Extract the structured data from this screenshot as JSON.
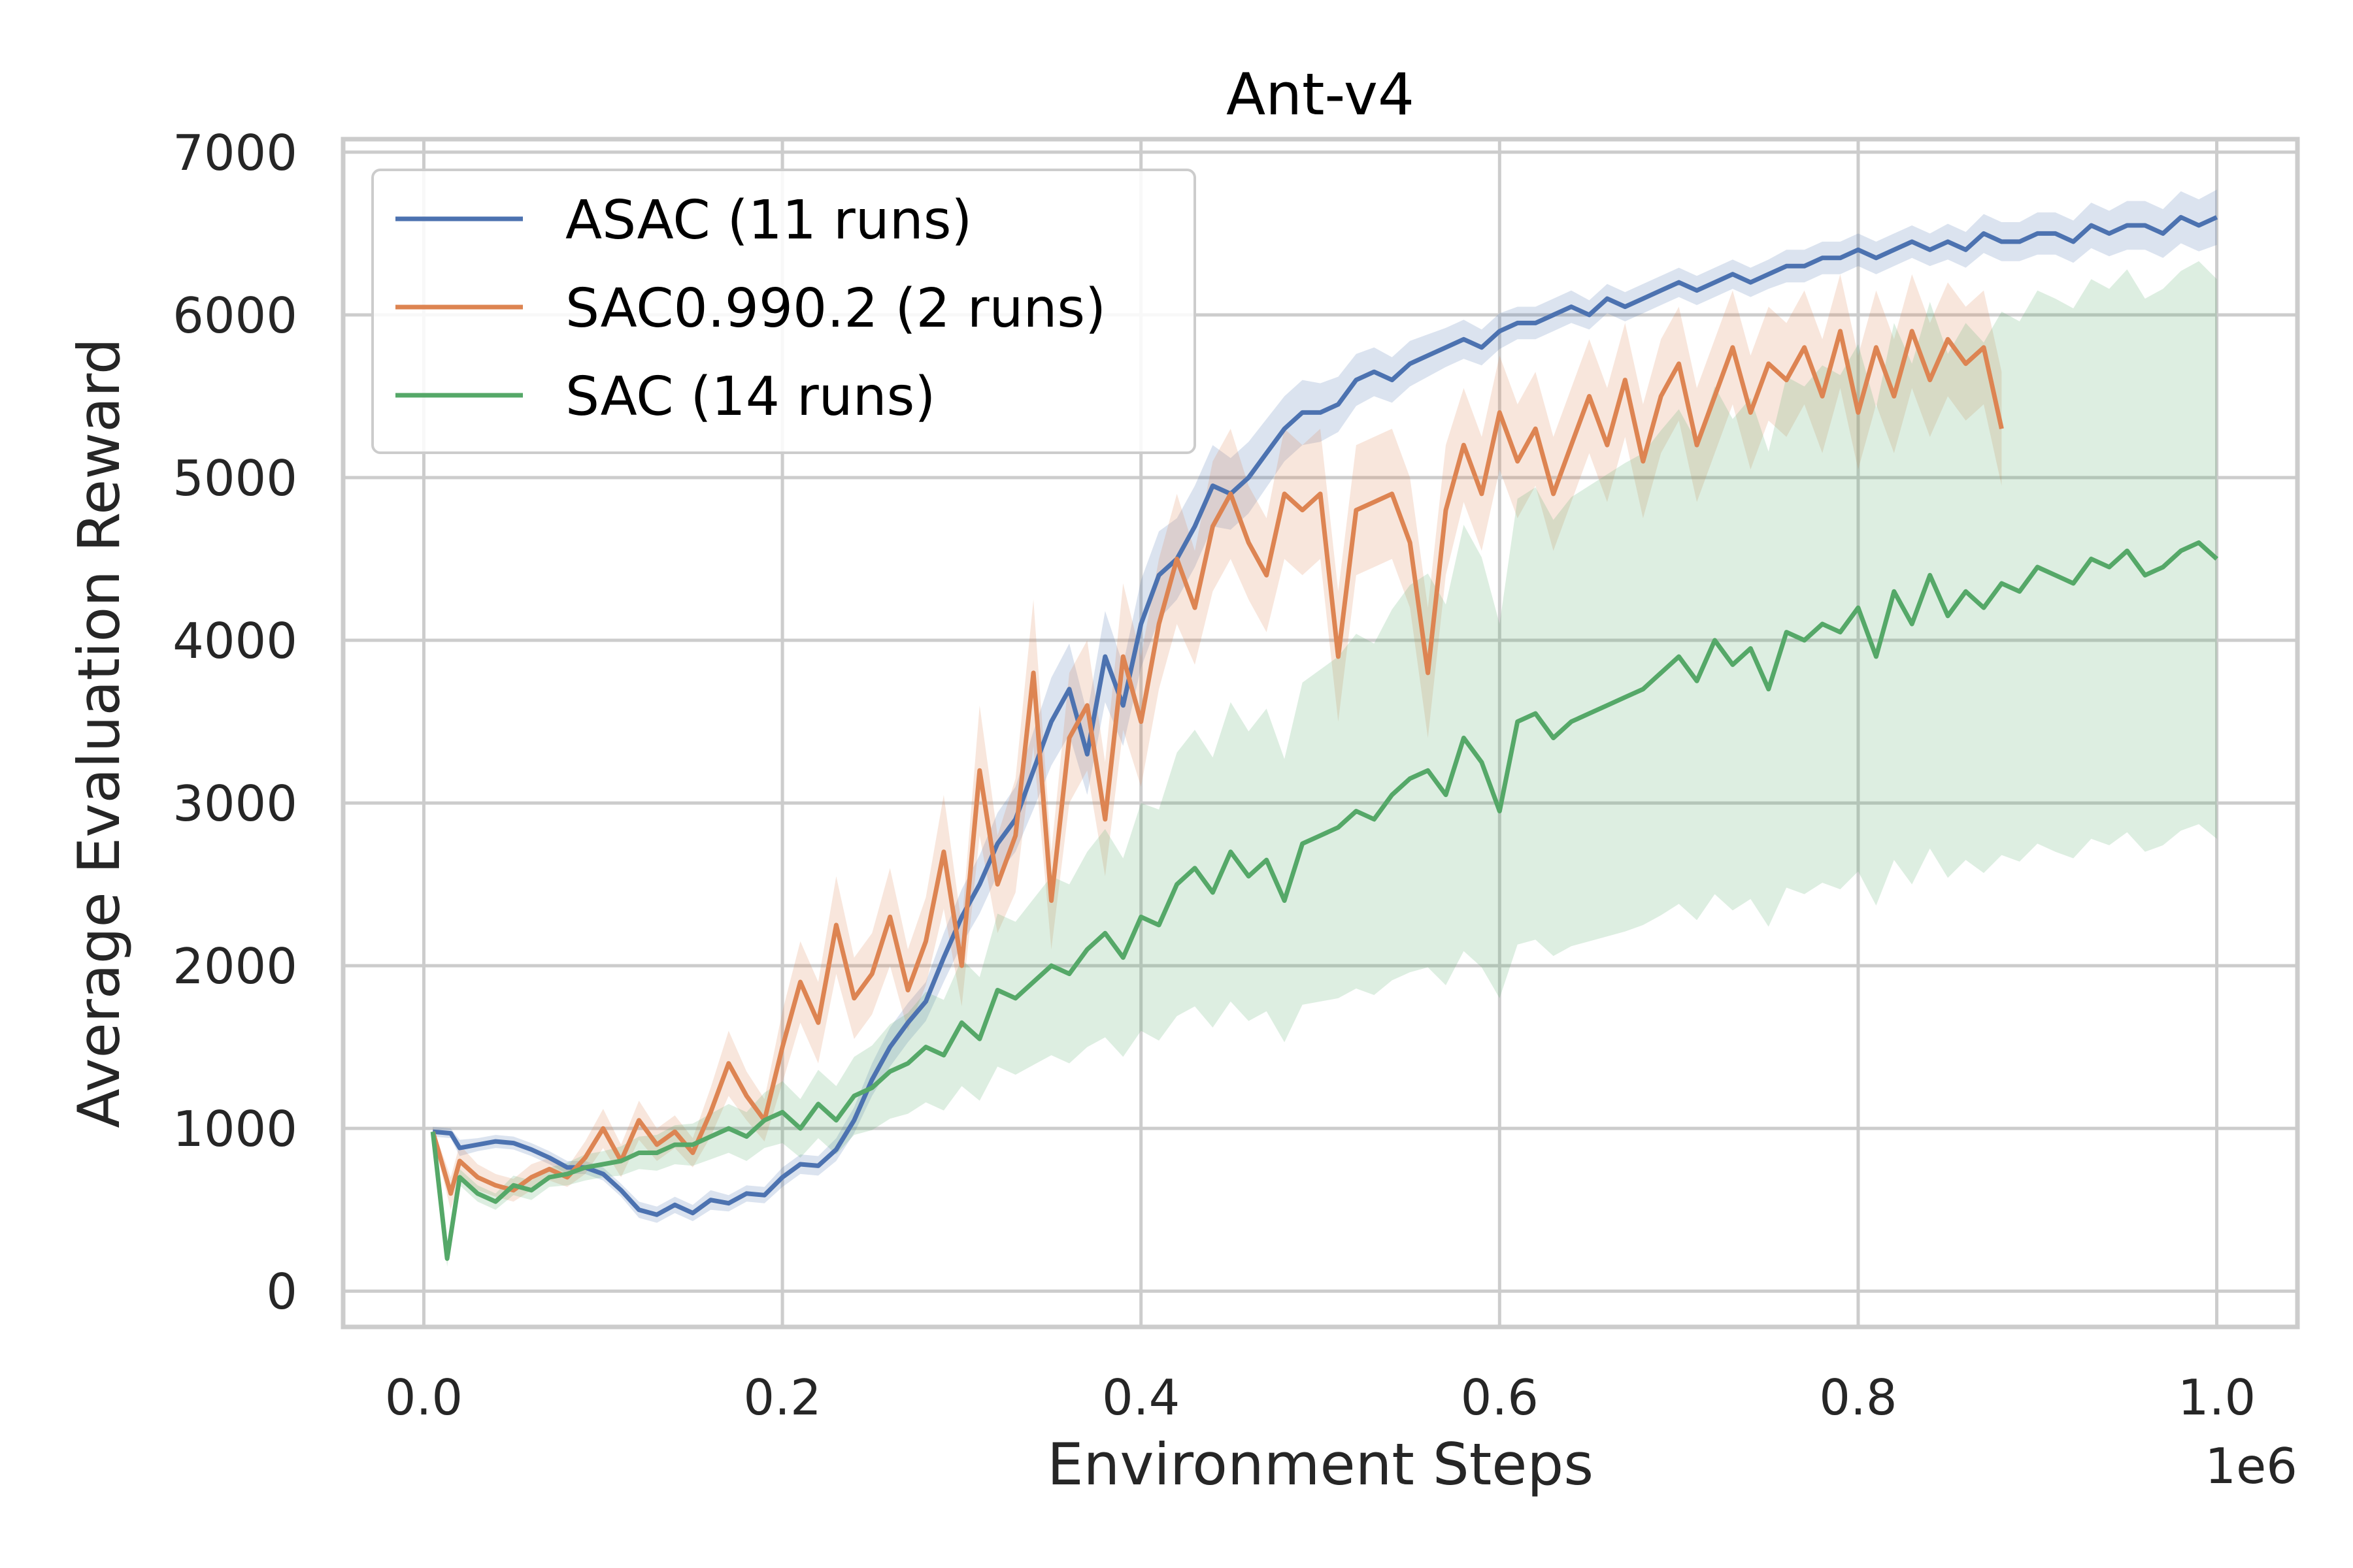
{
  "chart_data": {
    "type": "line",
    "title": "Ant-v4",
    "xlabel": "Environment Steps",
    "ylabel": "Average Evaluation Reward",
    "x_offset_label": "1e6",
    "xlim": [
      -0.045,
      1.045
    ],
    "ylim": [
      -220,
      7080
    ],
    "xticks": [
      0.0,
      0.2,
      0.4,
      0.6,
      0.8,
      1.0
    ],
    "xtick_labels": [
      "0.0",
      "0.2",
      "0.4",
      "0.6",
      "0.8",
      "1.0"
    ],
    "yticks": [
      0,
      1000,
      2000,
      3000,
      4000,
      5000,
      6000,
      7000
    ],
    "ytick_labels": [
      "0",
      "1000",
      "2000",
      "3000",
      "4000",
      "5000",
      "6000",
      "7000"
    ],
    "grid": true,
    "legend_position": "upper-left",
    "series": [
      {
        "name": "ASAC (11 runs)",
        "color": "#4c72b0",
        "x": [
          0.005,
          0.015,
          0.02,
          0.03,
          0.04,
          0.05,
          0.06,
          0.07,
          0.08,
          0.09,
          0.1,
          0.11,
          0.12,
          0.13,
          0.14,
          0.15,
          0.16,
          0.17,
          0.18,
          0.19,
          0.2,
          0.21,
          0.22,
          0.23,
          0.24,
          0.25,
          0.26,
          0.27,
          0.28,
          0.29,
          0.3,
          0.31,
          0.32,
          0.33,
          0.34,
          0.35,
          0.36,
          0.37,
          0.38,
          0.39,
          0.4,
          0.41,
          0.42,
          0.43,
          0.44,
          0.45,
          0.46,
          0.47,
          0.48,
          0.49,
          0.5,
          0.51,
          0.52,
          0.53,
          0.54,
          0.55,
          0.56,
          0.57,
          0.58,
          0.59,
          0.6,
          0.61,
          0.62,
          0.63,
          0.64,
          0.65,
          0.66,
          0.67,
          0.68,
          0.69,
          0.7,
          0.71,
          0.72,
          0.73,
          0.74,
          0.75,
          0.76,
          0.77,
          0.78,
          0.79,
          0.8,
          0.81,
          0.82,
          0.83,
          0.84,
          0.85,
          0.86,
          0.87,
          0.88,
          0.89,
          0.9,
          0.91,
          0.92,
          0.93,
          0.94,
          0.95,
          0.96,
          0.97,
          0.98,
          0.99,
          1.0
        ],
        "y": [
          980,
          970,
          880,
          900,
          920,
          910,
          870,
          820,
          760,
          760,
          720,
          620,
          500,
          470,
          530,
          480,
          560,
          540,
          600,
          590,
          700,
          780,
          770,
          870,
          1050,
          1300,
          1500,
          1650,
          1780,
          2050,
          2300,
          2500,
          2750,
          2900,
          3200,
          3500,
          3700,
          3300,
          3900,
          3600,
          4100,
          4400,
          4500,
          4700,
          4950,
          4900,
          5000,
          5150,
          5300,
          5400,
          5400,
          5450,
          5600,
          5650,
          5600,
          5700,
          5750,
          5800,
          5850,
          5800,
          5900,
          5950,
          5950,
          6000,
          6050,
          6000,
          6100,
          6050,
          6100,
          6150,
          6200,
          6150,
          6200,
          6250,
          6200,
          6250,
          6300,
          6300,
          6350,
          6350,
          6400,
          6350,
          6400,
          6450,
          6400,
          6450,
          6400,
          6500,
          6450,
          6450,
          6500,
          6500,
          6450,
          6550,
          6500,
          6550,
          6550,
          6500,
          6600,
          6550,
          6600
        ],
        "y_low": [
          950,
          940,
          830,
          860,
          880,
          870,
          830,
          780,
          720,
          720,
          680,
          580,
          450,
          420,
          480,
          430,
          500,
          490,
          550,
          540,
          640,
          720,
          710,
          800,
          970,
          1200,
          1380,
          1530,
          1660,
          1900,
          2130,
          2320,
          2560,
          2700,
          2960,
          3230,
          3420,
          3050,
          3620,
          3350,
          3830,
          4130,
          4250,
          4450,
          4700,
          4680,
          4780,
          4940,
          5100,
          5200,
          5220,
          5280,
          5440,
          5500,
          5460,
          5560,
          5620,
          5680,
          5730,
          5690,
          5790,
          5850,
          5850,
          5900,
          5950,
          5910,
          6010,
          5960,
          6010,
          6060,
          6110,
          6060,
          6110,
          6160,
          6110,
          6160,
          6200,
          6200,
          6250,
          6250,
          6300,
          6250,
          6300,
          6350,
          6300,
          6340,
          6290,
          6380,
          6330,
          6330,
          6370,
          6370,
          6320,
          6410,
          6360,
          6400,
          6400,
          6350,
          6440,
          6390,
          6430
        ],
        "y_high": [
          1010,
          1000,
          930,
          940,
          960,
          950,
          910,
          860,
          800,
          800,
          760,
          660,
          550,
          520,
          580,
          530,
          620,
          590,
          650,
          640,
          760,
          840,
          830,
          940,
          1130,
          1400,
          1620,
          1770,
          1900,
          2200,
          2470,
          2680,
          2940,
          3100,
          3440,
          3770,
          3980,
          3550,
          4180,
          3850,
          4370,
          4670,
          4750,
          4950,
          5200,
          5120,
          5220,
          5360,
          5500,
          5600,
          5580,
          5620,
          5760,
          5800,
          5740,
          5840,
          5880,
          5920,
          5970,
          5910,
          6010,
          6050,
          6050,
          6100,
          6150,
          6090,
          6190,
          6140,
          6190,
          6240,
          6290,
          6240,
          6290,
          6340,
          6290,
          6340,
          6400,
          6400,
          6450,
          6450,
          6500,
          6450,
          6500,
          6550,
          6500,
          6560,
          6510,
          6620,
          6570,
          6570,
          6630,
          6630,
          6580,
          6690,
          6640,
          6700,
          6700,
          6650,
          6760,
          6710,
          6770
        ]
      },
      {
        "name": "SAC0.990.2 (2 runs)",
        "color": "#dd8452",
        "x": [
          0.005,
          0.015,
          0.02,
          0.03,
          0.04,
          0.05,
          0.06,
          0.07,
          0.08,
          0.09,
          0.1,
          0.11,
          0.12,
          0.13,
          0.14,
          0.15,
          0.16,
          0.17,
          0.18,
          0.19,
          0.2,
          0.21,
          0.22,
          0.23,
          0.24,
          0.25,
          0.26,
          0.27,
          0.28,
          0.29,
          0.3,
          0.31,
          0.32,
          0.33,
          0.34,
          0.35,
          0.36,
          0.37,
          0.38,
          0.39,
          0.4,
          0.41,
          0.42,
          0.43,
          0.44,
          0.45,
          0.46,
          0.47,
          0.48,
          0.49,
          0.5,
          0.51,
          0.52,
          0.53,
          0.54,
          0.55,
          0.56,
          0.57,
          0.58,
          0.59,
          0.6,
          0.61,
          0.62,
          0.63,
          0.64,
          0.65,
          0.66,
          0.67,
          0.68,
          0.69,
          0.7,
          0.71,
          0.72,
          0.73,
          0.74,
          0.75,
          0.76,
          0.77,
          0.78,
          0.79,
          0.8,
          0.81,
          0.82,
          0.83,
          0.84,
          0.85,
          0.86,
          0.87,
          0.88
        ],
        "y": [
          980,
          600,
          800,
          700,
          650,
          620,
          700,
          750,
          700,
          820,
          1000,
          800,
          1050,
          900,
          980,
          850,
          1100,
          1400,
          1200,
          1050,
          1500,
          1900,
          1650,
          2250,
          1800,
          1950,
          2300,
          1850,
          2150,
          2700,
          2000,
          3200,
          2500,
          2800,
          3800,
          2400,
          3400,
          3600,
          2900,
          3900,
          3500,
          4100,
          4500,
          4200,
          4700,
          4900,
          4600,
          4400,
          4900,
          4800,
          4900,
          3900,
          4800,
          4850,
          4900,
          4600,
          3800,
          4800,
          5200,
          4900,
          5400,
          5100,
          5300,
          4900,
          5200,
          5500,
          5200,
          5600,
          5100,
          5500,
          5700,
          5200,
          5500,
          5800,
          5400,
          5700,
          5600,
          5800,
          5500,
          5900,
          5400,
          5800,
          5500,
          5900,
          5600,
          5850,
          5700,
          5800,
          5300
        ],
        "y_low": [
          950,
          500,
          700,
          620,
          580,
          550,
          620,
          680,
          640,
          720,
          880,
          700,
          930,
          800,
          880,
          760,
          950,
          1200,
          1050,
          920,
          1280,
          1650,
          1400,
          1950,
          1550,
          1700,
          2000,
          1600,
          1880,
          2350,
          1750,
          2800,
          2200,
          2450,
          3350,
          2100,
          3000,
          3200,
          2550,
          3450,
          3100,
          3700,
          4100,
          3850,
          4300,
          4500,
          4250,
          4050,
          4500,
          4400,
          4500,
          3500,
          4400,
          4450,
          4500,
          4200,
          3400,
          4400,
          4850,
          4550,
          5050,
          4750,
          4950,
          4550,
          4850,
          5150,
          4850,
          5250,
          4750,
          5150,
          5350,
          4850,
          5150,
          5450,
          5050,
          5350,
          5250,
          5450,
          5150,
          5550,
          5050,
          5450,
          5150,
          5550,
          5250,
          5500,
          5350,
          5450,
          4950
        ],
        "y_high": [
          1010,
          700,
          900,
          780,
          720,
          690,
          780,
          820,
          760,
          920,
          1120,
          900,
          1170,
          1000,
          1080,
          940,
          1250,
          1600,
          1350,
          1180,
          1720,
          2150,
          1900,
          2550,
          2050,
          2200,
          2600,
          2100,
          2420,
          3050,
          2250,
          3600,
          2800,
          3150,
          4250,
          2700,
          3800,
          4000,
          3250,
          4350,
          3900,
          4500,
          4900,
          4550,
          5100,
          5300,
          4950,
          4750,
          5300,
          5200,
          5300,
          4300,
          5200,
          5250,
          5300,
          5000,
          4200,
          5200,
          5550,
          5250,
          5750,
          5450,
          5650,
          5250,
          5550,
          5850,
          5550,
          5950,
          5450,
          5850,
          6050,
          5550,
          5850,
          6150,
          5750,
          6050,
          5950,
          6150,
          5850,
          6250,
          5750,
          6150,
          5850,
          6250,
          5950,
          6200,
          6050,
          6150,
          5650
        ]
      },
      {
        "name": "SAC (14 runs)",
        "color": "#55a868",
        "x": [
          0.005,
          0.013,
          0.02,
          0.03,
          0.04,
          0.05,
          0.06,
          0.07,
          0.08,
          0.09,
          0.1,
          0.11,
          0.12,
          0.13,
          0.14,
          0.15,
          0.16,
          0.17,
          0.18,
          0.19,
          0.2,
          0.21,
          0.22,
          0.23,
          0.24,
          0.25,
          0.26,
          0.27,
          0.28,
          0.29,
          0.3,
          0.31,
          0.32,
          0.33,
          0.34,
          0.35,
          0.36,
          0.37,
          0.38,
          0.39,
          0.4,
          0.41,
          0.42,
          0.43,
          0.44,
          0.45,
          0.46,
          0.47,
          0.48,
          0.49,
          0.5,
          0.51,
          0.52,
          0.53,
          0.54,
          0.55,
          0.56,
          0.57,
          0.58,
          0.59,
          0.6,
          0.61,
          0.62,
          0.63,
          0.64,
          0.65,
          0.66,
          0.67,
          0.68,
          0.69,
          0.7,
          0.71,
          0.72,
          0.73,
          0.74,
          0.75,
          0.76,
          0.77,
          0.78,
          0.79,
          0.8,
          0.81,
          0.82,
          0.83,
          0.84,
          0.85,
          0.86,
          0.87,
          0.88,
          0.89,
          0.9,
          0.91,
          0.92,
          0.93,
          0.94,
          0.95,
          0.96,
          0.97,
          0.98,
          0.99,
          1.0
        ],
        "y": [
          980,
          200,
          700,
          600,
          550,
          650,
          620,
          700,
          720,
          760,
          780,
          800,
          850,
          850,
          900,
          900,
          950,
          1000,
          950,
          1050,
          1100,
          1000,
          1150,
          1050,
          1200,
          1250,
          1350,
          1400,
          1500,
          1450,
          1650,
          1550,
          1850,
          1800,
          1900,
          2000,
          1950,
          2100,
          2200,
          2050,
          2300,
          2250,
          2500,
          2600,
          2450,
          2700,
          2550,
          2650,
          2400,
          2750,
          2800,
          2850,
          2950,
          2900,
          3050,
          3150,
          3200,
          3050,
          3400,
          3250,
          2950,
          3500,
          3550,
          3400,
          3500,
          3550,
          3600,
          3650,
          3700,
          3800,
          3900,
          3750,
          4000,
          3850,
          3950,
          3700,
          4050,
          4000,
          4100,
          4050,
          4200,
          3900,
          4300,
          4100,
          4400,
          4150,
          4300,
          4200,
          4350,
          4300,
          4450,
          4400,
          4350,
          4500,
          4450,
          4550,
          4400,
          4450,
          4550,
          4600,
          4500
        ],
        "y_low": [
          950,
          150,
          650,
          550,
          500,
          590,
          560,
          640,
          650,
          680,
          700,
          710,
          750,
          740,
          780,
          770,
          810,
          850,
          800,
          880,
          910,
          820,
          940,
          840,
          960,
          990,
          1060,
          1090,
          1160,
          1110,
          1260,
          1170,
          1380,
          1330,
          1390,
          1450,
          1400,
          1500,
          1560,
          1440,
          1600,
          1540,
          1690,
          1750,
          1620,
          1780,
          1660,
          1720,
          1530,
          1760,
          1780,
          1800,
          1860,
          1820,
          1910,
          1960,
          1990,
          1880,
          2090,
          1990,
          1800,
          2130,
          2160,
          2060,
          2120,
          2150,
          2180,
          2210,
          2250,
          2310,
          2380,
          2280,
          2440,
          2340,
          2410,
          2240,
          2480,
          2440,
          2510,
          2470,
          2580,
          2370,
          2650,
          2500,
          2720,
          2540,
          2650,
          2570,
          2680,
          2640,
          2750,
          2700,
          2660,
          2780,
          2740,
          2820,
          2700,
          2740,
          2830,
          2870,
          2780
        ],
        "y_high": [
          1010,
          250,
          750,
          650,
          600,
          710,
          680,
          760,
          790,
          840,
          860,
          890,
          950,
          960,
          1020,
          1030,
          1090,
          1150,
          1100,
          1220,
          1290,
          1180,
          1360,
          1260,
          1440,
          1510,
          1640,
          1710,
          1840,
          1790,
          2040,
          1930,
          2320,
          2270,
          2410,
          2550,
          2500,
          2700,
          2840,
          2660,
          3000,
          2960,
          3310,
          3450,
          3280,
          3620,
          3440,
          3580,
          3270,
          3740,
          3820,
          3900,
          4040,
          3980,
          4190,
          4340,
          4410,
          4220,
          4710,
          4510,
          4100,
          4870,
          4940,
          4740,
          4880,
          4950,
          5020,
          5090,
          5150,
          5290,
          5420,
          5220,
          5560,
          5360,
          5490,
          5160,
          5620,
          5560,
          5690,
          5630,
          5820,
          5430,
          5950,
          5700,
          6080,
          5760,
          5950,
          5830,
          6020,
          5960,
          6150,
          6100,
          6040,
          6220,
          6160,
          6280,
          6100,
          6160,
          6270,
          6330,
          6220
        ]
      }
    ]
  }
}
